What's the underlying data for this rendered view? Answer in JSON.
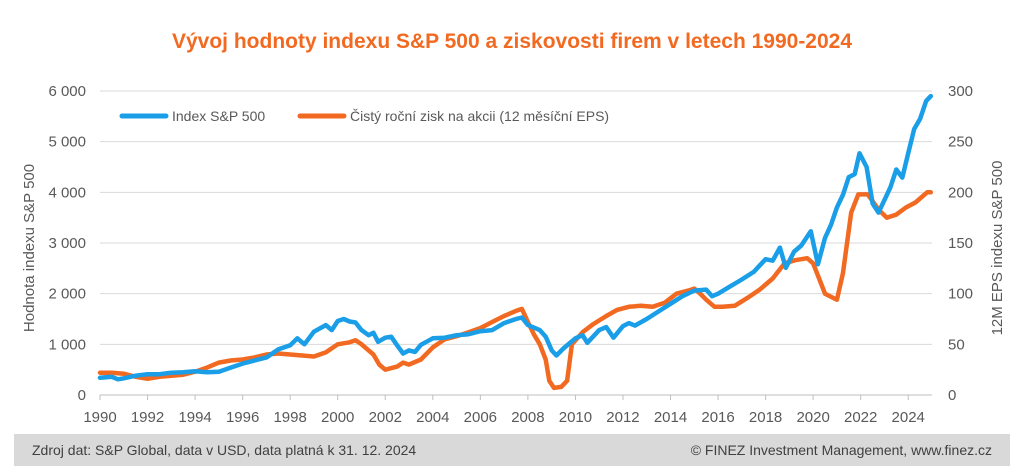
{
  "chart_data": {
    "type": "line",
    "title": "Vývoj hodnoty indexu S&P 500 a ziskovosti firem v letech 1990-2024",
    "ylabel": "Hodnota indexu S&P 500",
    "y2label": "12M EPS indexu S&P 500",
    "xlim": [
      1990,
      2025
    ],
    "ylim": [
      0,
      6000
    ],
    "y2lim": [
      0,
      300
    ],
    "x_ticks": [
      "1990",
      "1992",
      "1994",
      "1996",
      "1998",
      "2000",
      "2002",
      "2004",
      "2006",
      "2008",
      "2010",
      "2012",
      "2014",
      "2016",
      "2018",
      "2020",
      "2022",
      "2024"
    ],
    "y_ticks": [
      "0",
      "1 000",
      "2 000",
      "3 000",
      "4 000",
      "5 000",
      "6 000"
    ],
    "y2_ticks": [
      "0",
      "50",
      "100",
      "150",
      "200",
      "250",
      "300"
    ],
    "legend_position": "top-left",
    "series": [
      {
        "name": "Index S&P 500",
        "axis": "left",
        "color": "#1a9ee8",
        "points": [
          [
            1990.0,
            340
          ],
          [
            1990.5,
            360
          ],
          [
            1990.75,
            310
          ],
          [
            1991.0,
            330
          ],
          [
            1991.5,
            380
          ],
          [
            1992.0,
            410
          ],
          [
            1992.5,
            410
          ],
          [
            1993.0,
            440
          ],
          [
            1993.5,
            450
          ],
          [
            1994.0,
            470
          ],
          [
            1994.5,
            450
          ],
          [
            1995.0,
            460
          ],
          [
            1995.5,
            540
          ],
          [
            1996.0,
            620
          ],
          [
            1996.5,
            680
          ],
          [
            1997.0,
            740
          ],
          [
            1997.5,
            900
          ],
          [
            1998.0,
            980
          ],
          [
            1998.3,
            1120
          ],
          [
            1998.6,
            1000
          ],
          [
            1999.0,
            1250
          ],
          [
            1999.5,
            1380
          ],
          [
            1999.75,
            1280
          ],
          [
            2000.0,
            1460
          ],
          [
            2000.25,
            1500
          ],
          [
            2000.5,
            1450
          ],
          [
            2000.75,
            1430
          ],
          [
            2001.0,
            1280
          ],
          [
            2001.3,
            1180
          ],
          [
            2001.5,
            1230
          ],
          [
            2001.7,
            1050
          ],
          [
            2002.0,
            1130
          ],
          [
            2002.25,
            1150
          ],
          [
            2002.5,
            980
          ],
          [
            2002.75,
            820
          ],
          [
            2003.0,
            880
          ],
          [
            2003.25,
            850
          ],
          [
            2003.5,
            990
          ],
          [
            2004.0,
            1120
          ],
          [
            2004.5,
            1130
          ],
          [
            2005.0,
            1180
          ],
          [
            2005.5,
            1200
          ],
          [
            2006.0,
            1260
          ],
          [
            2006.5,
            1280
          ],
          [
            2007.0,
            1420
          ],
          [
            2007.5,
            1500
          ],
          [
            2007.75,
            1530
          ],
          [
            2008.0,
            1380
          ],
          [
            2008.5,
            1280
          ],
          [
            2008.75,
            1150
          ],
          [
            2009.0,
            880
          ],
          [
            2009.2,
            780
          ],
          [
            2009.5,
            920
          ],
          [
            2010.0,
            1120
          ],
          [
            2010.3,
            1180
          ],
          [
            2010.5,
            1030
          ],
          [
            2011.0,
            1280
          ],
          [
            2011.3,
            1340
          ],
          [
            2011.6,
            1130
          ],
          [
            2012.0,
            1360
          ],
          [
            2012.25,
            1420
          ],
          [
            2012.5,
            1370
          ],
          [
            2013.0,
            1500
          ],
          [
            2013.5,
            1650
          ],
          [
            2014.0,
            1800
          ],
          [
            2014.5,
            1950
          ],
          [
            2015.0,
            2060
          ],
          [
            2015.5,
            2080
          ],
          [
            2015.75,
            1950
          ],
          [
            2016.0,
            2000
          ],
          [
            2016.5,
            2140
          ],
          [
            2017.0,
            2280
          ],
          [
            2017.5,
            2430
          ],
          [
            2018.0,
            2680
          ],
          [
            2018.3,
            2650
          ],
          [
            2018.6,
            2910
          ],
          [
            2018.85,
            2510
          ],
          [
            2019.2,
            2830
          ],
          [
            2019.5,
            2950
          ],
          [
            2019.9,
            3230
          ],
          [
            2020.2,
            2580
          ],
          [
            2020.5,
            3100
          ],
          [
            2020.75,
            3360
          ],
          [
            2021.0,
            3700
          ],
          [
            2021.25,
            3950
          ],
          [
            2021.5,
            4300
          ],
          [
            2021.75,
            4360
          ],
          [
            2021.95,
            4770
          ],
          [
            2022.25,
            4500
          ],
          [
            2022.5,
            3780
          ],
          [
            2022.75,
            3600
          ],
          [
            2023.0,
            3850
          ],
          [
            2023.25,
            4100
          ],
          [
            2023.5,
            4450
          ],
          [
            2023.75,
            4290
          ],
          [
            2024.0,
            4770
          ],
          [
            2024.25,
            5250
          ],
          [
            2024.5,
            5450
          ],
          [
            2024.75,
            5800
          ],
          [
            2024.95,
            5900
          ]
        ]
      },
      {
        "name": "Čistý roční zisk na akcii (12 měsíční EPS)",
        "axis": "right",
        "color": "#f26a21",
        "points": [
          [
            1990.0,
            22
          ],
          [
            1990.5,
            22
          ],
          [
            1991.0,
            21
          ],
          [
            1991.5,
            18
          ],
          [
            1992.0,
            16
          ],
          [
            1992.5,
            18
          ],
          [
            1993.0,
            19
          ],
          [
            1993.5,
            20
          ],
          [
            1994.0,
            23
          ],
          [
            1994.5,
            27
          ],
          [
            1995.0,
            32
          ],
          [
            1995.5,
            34
          ],
          [
            1996.0,
            35
          ],
          [
            1996.5,
            37
          ],
          [
            1997.0,
            40
          ],
          [
            1997.5,
            41
          ],
          [
            1998.0,
            40
          ],
          [
            1998.5,
            39
          ],
          [
            1999.0,
            38
          ],
          [
            1999.5,
            42
          ],
          [
            2000.0,
            50
          ],
          [
            2000.5,
            52
          ],
          [
            2000.75,
            54
          ],
          [
            2001.0,
            50
          ],
          [
            2001.5,
            40
          ],
          [
            2001.75,
            30
          ],
          [
            2002.0,
            25
          ],
          [
            2002.5,
            28
          ],
          [
            2002.75,
            32
          ],
          [
            2003.0,
            30
          ],
          [
            2003.5,
            35
          ],
          [
            2004.0,
            47
          ],
          [
            2004.5,
            55
          ],
          [
            2005.0,
            58
          ],
          [
            2005.5,
            62
          ],
          [
            2006.0,
            66
          ],
          [
            2006.5,
            72
          ],
          [
            2007.0,
            78
          ],
          [
            2007.5,
            83
          ],
          [
            2007.75,
            85
          ],
          [
            2008.0,
            72
          ],
          [
            2008.25,
            60
          ],
          [
            2008.5,
            50
          ],
          [
            2008.75,
            35
          ],
          [
            2008.9,
            14
          ],
          [
            2009.1,
            7
          ],
          [
            2009.4,
            8
          ],
          [
            2009.65,
            14
          ],
          [
            2009.85,
            50
          ],
          [
            2010.3,
            62
          ],
          [
            2010.75,
            70
          ],
          [
            2011.3,
            78
          ],
          [
            2011.75,
            84
          ],
          [
            2012.25,
            87
          ],
          [
            2012.75,
            88
          ],
          [
            2013.25,
            87
          ],
          [
            2013.75,
            91
          ],
          [
            2014.25,
            100
          ],
          [
            2014.75,
            103
          ],
          [
            2015.0,
            105
          ],
          [
            2015.25,
            100
          ],
          [
            2015.5,
            94
          ],
          [
            2015.85,
            87
          ],
          [
            2016.2,
            87
          ],
          [
            2016.7,
            88
          ],
          [
            2017.25,
            96
          ],
          [
            2017.75,
            104
          ],
          [
            2018.3,
            115
          ],
          [
            2018.8,
            130
          ],
          [
            2019.25,
            133
          ],
          [
            2019.75,
            135
          ],
          [
            2020.0,
            130
          ],
          [
            2020.25,
            115
          ],
          [
            2020.5,
            100
          ],
          [
            2021.0,
            94
          ],
          [
            2021.25,
            120
          ],
          [
            2021.6,
            180
          ],
          [
            2021.9,
            198
          ],
          [
            2022.3,
            198
          ],
          [
            2022.75,
            183
          ],
          [
            2023.1,
            175
          ],
          [
            2023.5,
            178
          ],
          [
            2023.9,
            185
          ],
          [
            2024.3,
            190
          ],
          [
            2024.8,
            200
          ],
          [
            2024.95,
            200
          ]
        ]
      }
    ]
  },
  "footer": {
    "source": "Zdroj dat: S&P Global, data v USD, data platná k 31. 12. 2024",
    "copyright": "© FINEZ Investment Management, www.finez.cz"
  }
}
